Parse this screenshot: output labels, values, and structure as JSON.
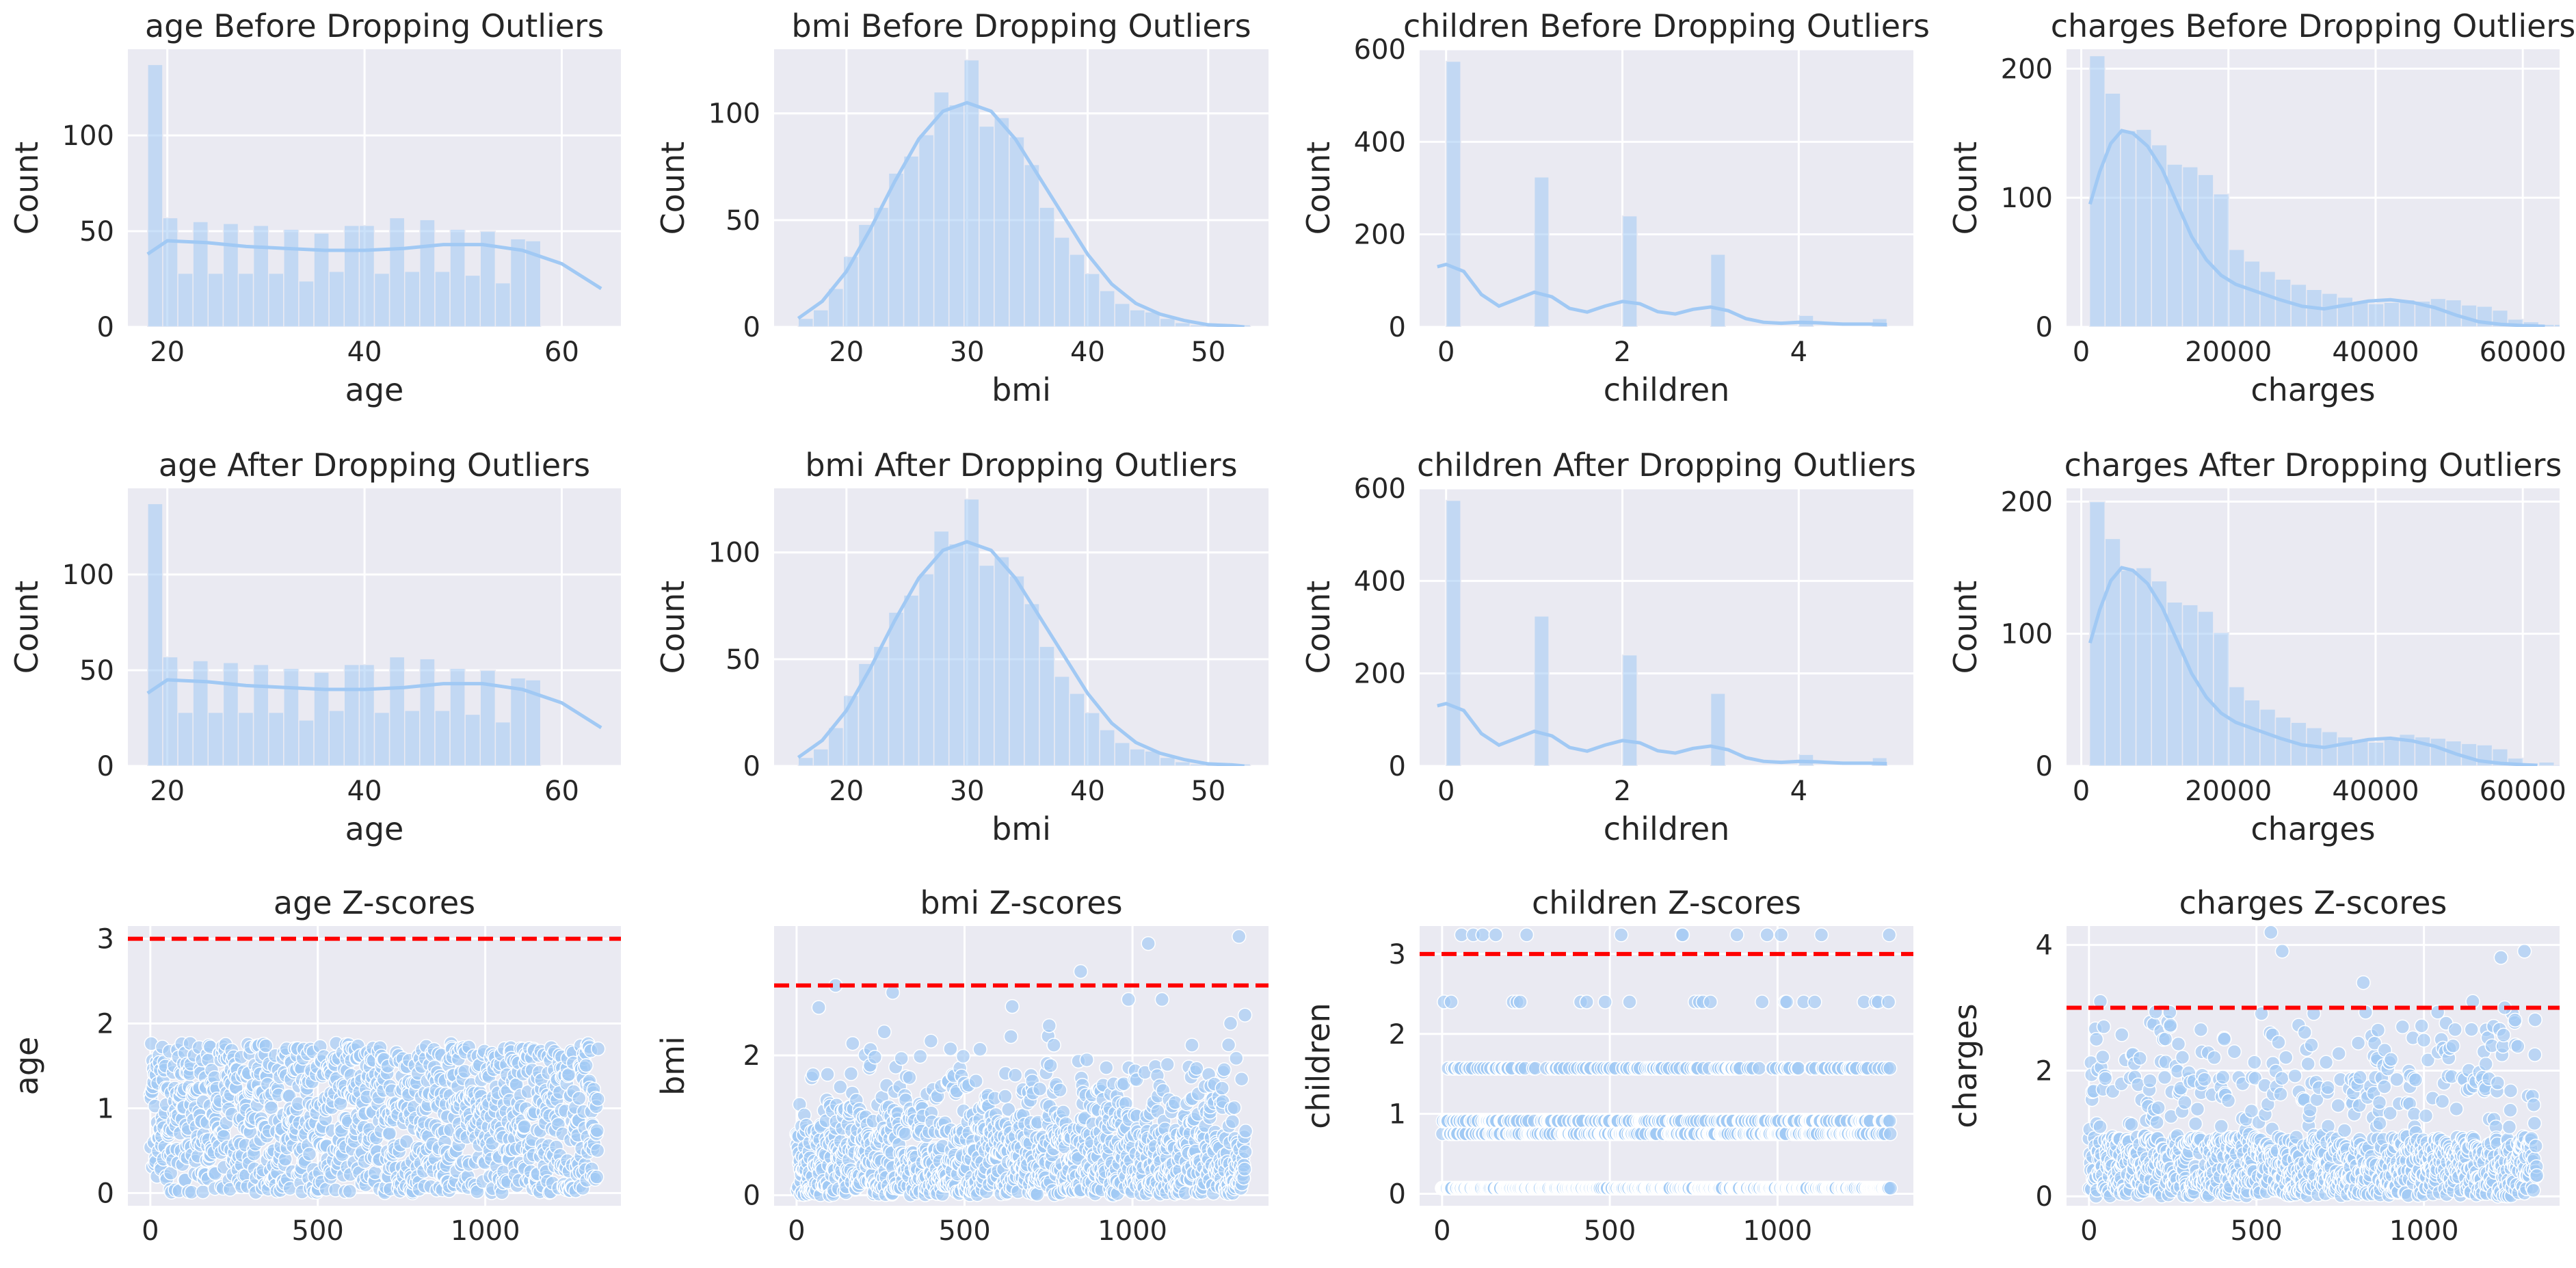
{
  "figure": {
    "background": "#ffffff",
    "panel_color": "#eaeaf2",
    "grid_color": "#ffffff",
    "bar_color": "#a1c9f4",
    "kde_color": "#a1c9f4",
    "threshold_color": "#ff0000"
  },
  "chart_data": [
    {
      "id": "age-before",
      "type": "bar",
      "title": "age Before Dropping Outliers",
      "xlabel": "age",
      "ylabel": "Count",
      "xlim": [
        16.0,
        66.0
      ],
      "ylim": [
        0,
        145
      ],
      "xticks": [
        20,
        40,
        60
      ],
      "yticks": [
        0,
        50,
        100
      ],
      "bin_start": 18,
      "bin_width": 1.5333,
      "values": [
        137,
        57,
        28,
        55,
        28,
        54,
        28,
        53,
        28,
        51,
        24,
        49,
        29,
        53,
        53,
        28,
        57,
        29,
        56,
        29,
        51,
        27,
        50,
        23,
        46,
        45
      ],
      "kde": [
        [
          18,
          38
        ],
        [
          20,
          45
        ],
        [
          24,
          44
        ],
        [
          28,
          42
        ],
        [
          32,
          41
        ],
        [
          36,
          40
        ],
        [
          40,
          40
        ],
        [
          44,
          41
        ],
        [
          48,
          43
        ],
        [
          52,
          43
        ],
        [
          56,
          40
        ],
        [
          60,
          33
        ],
        [
          64,
          20
        ]
      ],
      "grid": true
    },
    {
      "id": "bmi-before",
      "type": "bar",
      "title": "bmi Before Dropping Outliers",
      "xlabel": "bmi",
      "ylabel": "Count",
      "xlim": [
        14.0,
        55.0
      ],
      "ylim": [
        0,
        130
      ],
      "xticks": [
        20,
        30,
        40,
        50
      ],
      "yticks": [
        0,
        50,
        100
      ],
      "bin_start": 16.0,
      "bin_width": 1.25,
      "values": [
        4,
        8,
        18,
        33,
        48,
        56,
        72,
        80,
        90,
        110,
        104,
        125,
        94,
        98,
        89,
        76,
        56,
        42,
        34,
        25,
        17,
        11,
        8,
        7,
        4,
        2,
        1,
        1,
        1,
        1
      ],
      "kde": [
        [
          16,
          4
        ],
        [
          18,
          12
        ],
        [
          20,
          26
        ],
        [
          22,
          46
        ],
        [
          24,
          68
        ],
        [
          26,
          88
        ],
        [
          28,
          101
        ],
        [
          30,
          105
        ],
        [
          32,
          101
        ],
        [
          34,
          88
        ],
        [
          36,
          70
        ],
        [
          38,
          52
        ],
        [
          40,
          34
        ],
        [
          42,
          20
        ],
        [
          44,
          11
        ],
        [
          46,
          6
        ],
        [
          48,
          3
        ],
        [
          50,
          1
        ],
        [
          52,
          0.5
        ],
        [
          53,
          0
        ]
      ],
      "grid": true
    },
    {
      "id": "children-before",
      "type": "bar",
      "title": "children Before Dropping Outliers",
      "xlabel": "children",
      "ylabel": "Count",
      "xlim": [
        -0.3,
        5.3
      ],
      "ylim": [
        0,
        600
      ],
      "xticks": [
        0,
        2,
        4
      ],
      "yticks": [
        0,
        200,
        400,
        600
      ],
      "bin_start": 0,
      "bin_width": 0.1667,
      "values": [
        574,
        0,
        0,
        0,
        0,
        0,
        324,
        0,
        0,
        0,
        0,
        0,
        240,
        0,
        0,
        0,
        0,
        0,
        157,
        0,
        0,
        0,
        0,
        0,
        25,
        0,
        0,
        0,
        0,
        18
      ],
      "kde": [
        [
          -0.1,
          130
        ],
        [
          0,
          135
        ],
        [
          0.2,
          120
        ],
        [
          0.4,
          70
        ],
        [
          0.6,
          45
        ],
        [
          0.8,
          60
        ],
        [
          1.0,
          75
        ],
        [
          1.2,
          65
        ],
        [
          1.4,
          40
        ],
        [
          1.6,
          32
        ],
        [
          1.8,
          45
        ],
        [
          2.0,
          55
        ],
        [
          2.2,
          50
        ],
        [
          2.4,
          33
        ],
        [
          2.6,
          28
        ],
        [
          2.8,
          38
        ],
        [
          3.0,
          43
        ],
        [
          3.2,
          35
        ],
        [
          3.4,
          18
        ],
        [
          3.6,
          10
        ],
        [
          3.8,
          8
        ],
        [
          4.0,
          10
        ],
        [
          4.2,
          9
        ],
        [
          4.5,
          6
        ],
        [
          4.8,
          6
        ],
        [
          5.0,
          5
        ]
      ],
      "grid": true
    },
    {
      "id": "charges-before",
      "type": "bar",
      "title": "charges Before Dropping Outliers",
      "xlabel": "charges",
      "ylabel": "Count",
      "xlim": [
        -2000,
        65000
      ],
      "ylim": [
        0,
        215
      ],
      "xticks": [
        0,
        20000,
        40000,
        60000
      ],
      "yticks": [
        0,
        100,
        200
      ],
      "bin_start": 1121.87,
      "bin_width": 2105.4,
      "values": [
        210,
        181,
        152,
        153,
        141,
        126,
        124,
        118,
        103,
        60,
        51,
        43,
        37,
        33,
        29,
        26,
        23,
        20,
        18,
        19,
        21,
        20,
        22,
        21,
        17,
        16,
        13,
        6,
        4,
        2,
        2
      ],
      "kde": [
        [
          1200,
          95
        ],
        [
          2500,
          120
        ],
        [
          4000,
          142
        ],
        [
          5500,
          152
        ],
        [
          7000,
          150
        ],
        [
          9000,
          140
        ],
        [
          11000,
          122
        ],
        [
          13000,
          96
        ],
        [
          15000,
          70
        ],
        [
          17000,
          52
        ],
        [
          19000,
          40
        ],
        [
          21000,
          33
        ],
        [
          24000,
          27
        ],
        [
          27000,
          21
        ],
        [
          30000,
          16
        ],
        [
          33000,
          14
        ],
        [
          36000,
          17
        ],
        [
          39000,
          20
        ],
        [
          42000,
          21
        ],
        [
          45000,
          19
        ],
        [
          48000,
          15
        ],
        [
          51000,
          9
        ],
        [
          54000,
          4
        ],
        [
          57000,
          2
        ],
        [
          60000,
          1
        ],
        [
          63000,
          0.5
        ]
      ],
      "grid": true
    },
    {
      "id": "age-after",
      "type": "bar",
      "title": "age After Dropping Outliers",
      "xlabel": "age",
      "ylabel": "Count",
      "xlim": [
        16.0,
        66.0
      ],
      "ylim": [
        0,
        145
      ],
      "xticks": [
        20,
        40,
        60
      ],
      "yticks": [
        0,
        50,
        100
      ],
      "bin_start": 18,
      "bin_width": 1.5333,
      "values": [
        137,
        57,
        28,
        55,
        28,
        54,
        28,
        53,
        28,
        51,
        24,
        49,
        29,
        53,
        53,
        28,
        57,
        29,
        56,
        29,
        51,
        27,
        50,
        23,
        46,
        45
      ],
      "kde": [
        [
          18,
          38
        ],
        [
          20,
          45
        ],
        [
          24,
          44
        ],
        [
          28,
          42
        ],
        [
          32,
          41
        ],
        [
          36,
          40
        ],
        [
          40,
          40
        ],
        [
          44,
          41
        ],
        [
          48,
          43
        ],
        [
          52,
          43
        ],
        [
          56,
          40
        ],
        [
          60,
          33
        ],
        [
          64,
          20
        ]
      ],
      "grid": true
    },
    {
      "id": "bmi-after",
      "type": "bar",
      "title": "bmi After Dropping Outliers",
      "xlabel": "bmi",
      "ylabel": "Count",
      "xlim": [
        14.0,
        55.0
      ],
      "ylim": [
        0,
        130
      ],
      "xticks": [
        20,
        30,
        40,
        50
      ],
      "yticks": [
        0,
        50,
        100
      ],
      "bin_start": 16.0,
      "bin_width": 1.25,
      "values": [
        4,
        8,
        18,
        33,
        48,
        56,
        72,
        80,
        90,
        110,
        104,
        125,
        94,
        98,
        89,
        76,
        56,
        42,
        34,
        25,
        17,
        11,
        8,
        7,
        4,
        2,
        1,
        1,
        1,
        1
      ],
      "kde": [
        [
          16,
          4
        ],
        [
          18,
          12
        ],
        [
          20,
          26
        ],
        [
          22,
          46
        ],
        [
          24,
          68
        ],
        [
          26,
          88
        ],
        [
          28,
          101
        ],
        [
          30,
          105
        ],
        [
          32,
          101
        ],
        [
          34,
          88
        ],
        [
          36,
          70
        ],
        [
          38,
          52
        ],
        [
          40,
          34
        ],
        [
          42,
          20
        ],
        [
          44,
          11
        ],
        [
          46,
          6
        ],
        [
          48,
          3
        ],
        [
          50,
          1
        ],
        [
          52,
          0.5
        ],
        [
          53,
          0
        ]
      ],
      "grid": true
    },
    {
      "id": "children-after",
      "type": "bar",
      "title": "children After Dropping Outliers",
      "xlabel": "children",
      "ylabel": "Count",
      "xlim": [
        -0.3,
        5.3
      ],
      "ylim": [
        0,
        600
      ],
      "xticks": [
        0,
        2,
        4
      ],
      "yticks": [
        0,
        200,
        400,
        600
      ],
      "bin_start": 0,
      "bin_width": 0.1667,
      "values": [
        574,
        0,
        0,
        0,
        0,
        0,
        324,
        0,
        0,
        0,
        0,
        0,
        240,
        0,
        0,
        0,
        0,
        0,
        157,
        0,
        0,
        0,
        0,
        0,
        25,
        0,
        0,
        0,
        0,
        18
      ],
      "kde": [
        [
          -0.1,
          130
        ],
        [
          0,
          135
        ],
        [
          0.2,
          120
        ],
        [
          0.4,
          70
        ],
        [
          0.6,
          45
        ],
        [
          0.8,
          60
        ],
        [
          1.0,
          75
        ],
        [
          1.2,
          65
        ],
        [
          1.4,
          40
        ],
        [
          1.6,
          32
        ],
        [
          1.8,
          45
        ],
        [
          2.0,
          55
        ],
        [
          2.2,
          50
        ],
        [
          2.4,
          33
        ],
        [
          2.6,
          28
        ],
        [
          2.8,
          38
        ],
        [
          3.0,
          43
        ],
        [
          3.2,
          35
        ],
        [
          3.4,
          18
        ],
        [
          3.6,
          10
        ],
        [
          3.8,
          8
        ],
        [
          4.0,
          10
        ],
        [
          4.2,
          9
        ],
        [
          4.5,
          6
        ],
        [
          4.8,
          6
        ],
        [
          5.0,
          5
        ]
      ],
      "grid": true
    },
    {
      "id": "charges-after",
      "type": "bar",
      "title": "charges After Dropping Outliers",
      "xlabel": "charges",
      "ylabel": "Count",
      "xlim": [
        -2000,
        65000
      ],
      "ylim": [
        0,
        210
      ],
      "xticks": [
        0,
        20000,
        40000,
        60000
      ],
      "yticks": [
        0,
        100,
        200
      ],
      "bin_start": 1121.87,
      "bin_width": 2105.4,
      "values": [
        200,
        172,
        148,
        150,
        140,
        124,
        122,
        117,
        101,
        60,
        50,
        43,
        37,
        33,
        29,
        26,
        22,
        19,
        18,
        20,
        24,
        22,
        21,
        19,
        17,
        16,
        13,
        6,
        0,
        3,
        1
      ],
      "kde": [
        [
          1200,
          93
        ],
        [
          2500,
          118
        ],
        [
          4000,
          140
        ],
        [
          5500,
          150
        ],
        [
          7000,
          148
        ],
        [
          9000,
          138
        ],
        [
          11000,
          120
        ],
        [
          13000,
          95
        ],
        [
          15000,
          70
        ],
        [
          17000,
          52
        ],
        [
          19000,
          40
        ],
        [
          21000,
          33
        ],
        [
          24000,
          27
        ],
        [
          27000,
          21
        ],
        [
          30000,
          16
        ],
        [
          33000,
          14
        ],
        [
          36000,
          17
        ],
        [
          39000,
          20
        ],
        [
          42000,
          21
        ],
        [
          45000,
          19
        ],
        [
          48000,
          15
        ],
        [
          51000,
          9
        ],
        [
          54000,
          4
        ],
        [
          57000,
          2
        ],
        [
          60000,
          1
        ],
        [
          62000,
          0.5
        ]
      ],
      "grid": true
    },
    {
      "id": "age-z",
      "type": "scatter",
      "title": "age Z-scores",
      "xlabel": "",
      "ylabel": "age",
      "xlim": [
        -67,
        1405
      ],
      "ylim": [
        -0.15,
        3.15
      ],
      "xticks": [
        0,
        500,
        1000
      ],
      "yticks": [
        0,
        1,
        2,
        3
      ],
      "threshold": 3,
      "n_points": 1338,
      "distribution": "age",
      "grid": true
    },
    {
      "id": "bmi-z",
      "type": "scatter",
      "title": "bmi Z-scores",
      "xlabel": "",
      "ylabel": "bmi",
      "xlim": [
        -67,
        1405
      ],
      "ylim": [
        -0.15,
        3.85
      ],
      "xticks": [
        0,
        500,
        1000
      ],
      "yticks": [
        0,
        2
      ],
      "threshold": 3,
      "n_points": 1338,
      "distribution": "bmi",
      "extremes": [
        [
          116,
          3.0
        ],
        [
          846,
          3.2
        ],
        [
          1047,
          3.6
        ],
        [
          1317,
          3.7
        ],
        [
          286,
          2.9
        ],
        [
          988,
          2.8
        ],
        [
          1088,
          2.8
        ],
        [
          642,
          2.7
        ]
      ],
      "grid": true
    },
    {
      "id": "children-z",
      "type": "scatter",
      "title": "children Z-scores",
      "xlabel": "",
      "ylabel": "children",
      "xlim": [
        -67,
        1405
      ],
      "ylim": [
        -0.15,
        3.35
      ],
      "xticks": [
        0,
        500,
        1000
      ],
      "yticks": [
        0,
        1,
        2,
        3
      ],
      "threshold": 3,
      "n_points": 1338,
      "distribution": "children",
      "levels": [
        [
          0.07,
          0.43
        ],
        [
          0.75,
          0.24
        ],
        [
          0.91,
          0.18
        ],
        [
          1.57,
          0.12
        ],
        [
          2.4,
          0.02
        ],
        [
          3.24,
          0.014
        ]
      ],
      "grid": true
    },
    {
      "id": "charges-z",
      "type": "scatter",
      "title": "charges Z-scores",
      "xlabel": "",
      "ylabel": "charges",
      "xlim": [
        -67,
        1405
      ],
      "ylim": [
        -0.15,
        4.3
      ],
      "xticks": [
        0,
        500,
        1000
      ],
      "yticks": [
        0,
        2,
        4
      ],
      "threshold": 3,
      "n_points": 1338,
      "distribution": "charges",
      "extremes": [
        [
          34,
          3.1
        ],
        [
          543,
          4.2
        ],
        [
          577,
          3.9
        ],
        [
          819,
          3.4
        ],
        [
          1300,
          3.9
        ],
        [
          1230,
          3.8
        ],
        [
          1146,
          3.1
        ],
        [
          1241,
          3.0
        ]
      ],
      "grid": true
    }
  ]
}
